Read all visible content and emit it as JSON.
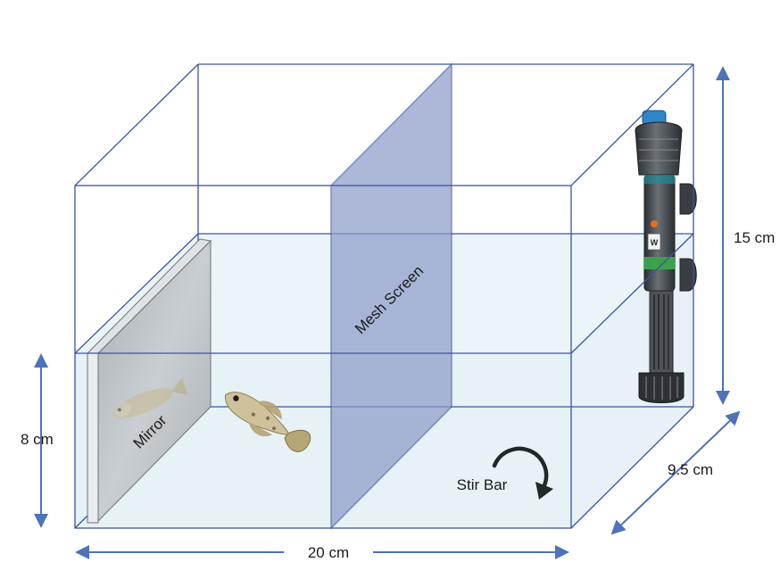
{
  "labels": {
    "mirror": "Mirror",
    "mesh_screen": "Mesh Screen",
    "stir_bar": "Stir Bar"
  },
  "dimensions": {
    "height_total": "15 cm",
    "water_height": "8 cm",
    "width": "20 cm",
    "depth": "9.5 cm"
  },
  "heater": {
    "badge": "W"
  },
  "colors": {
    "tank_edge": "#3a55a0",
    "water": "#e6f1f7",
    "mesh": "#8e9cc8",
    "arrow": "#4d73b8",
    "mirror": "#b9bfc4"
  }
}
